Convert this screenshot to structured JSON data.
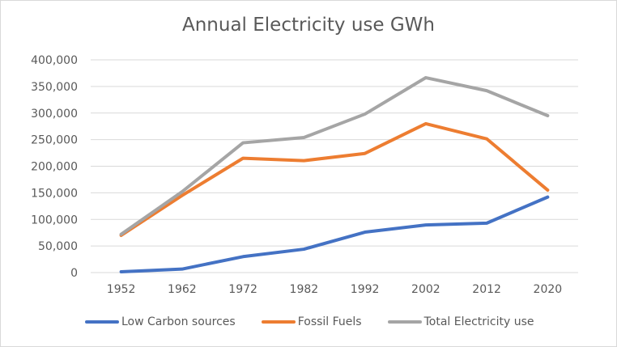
{
  "chart_data": {
    "type": "line",
    "title": "Annual Electricity use GWh",
    "xlabel": "",
    "ylabel": "",
    "categories": [
      "1952",
      "1962",
      "1972",
      "1982",
      "1992",
      "2002",
      "2012",
      "2020"
    ],
    "ylim": [
      0,
      400000
    ],
    "yticks": [
      0,
      50000,
      100000,
      150000,
      200000,
      250000,
      300000,
      350000,
      400000
    ],
    "ytick_labels": [
      "0",
      "50,000",
      "100,000",
      "150,000",
      "200,000",
      "250,000",
      "300,000",
      "350,000",
      "400,000"
    ],
    "grid": true,
    "legend_position": "bottom",
    "series": [
      {
        "name": "Low Carbon sources",
        "color": "#4472c4",
        "values": [
          1500,
          6600,
          30000,
          44000,
          76000,
          89500,
          93000,
          142000
        ]
      },
      {
        "name": "Fossil Fuels",
        "color": "#ed7d31",
        "values": [
          70000,
          145000,
          215000,
          210500,
          224000,
          280000,
          251500,
          155000
        ]
      },
      {
        "name": "Total Electricity use",
        "color": "#a5a5a5",
        "values": [
          72000,
          152000,
          244000,
          254000,
          298000,
          366500,
          342000,
          295000
        ]
      }
    ]
  }
}
